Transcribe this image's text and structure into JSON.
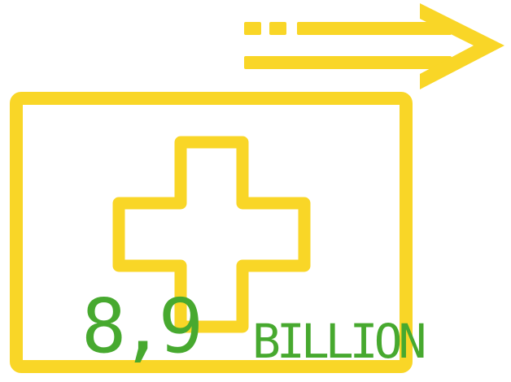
{
  "figure": {
    "value": "8,9",
    "unit": "BILLION"
  },
  "icons": {
    "main": "medical-kit-forward-arrow-icon"
  },
  "colors": {
    "icon_yellow": "#F9D627",
    "text_green": "#47A92F",
    "background": "#FFFFFF"
  }
}
